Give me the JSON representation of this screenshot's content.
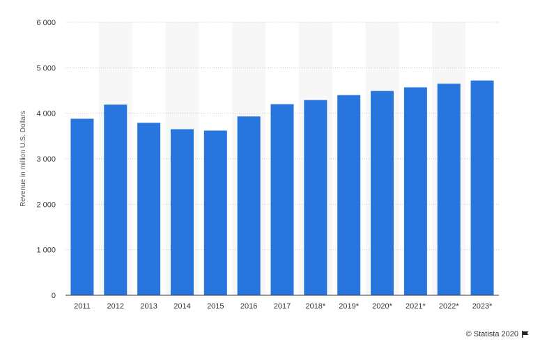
{
  "chart_data": {
    "type": "bar",
    "title": "",
    "xlabel": "",
    "ylabel": "Revenue in million U.S. Dollars",
    "categories": [
      "2011",
      "2012",
      "2013",
      "2014",
      "2015",
      "2016",
      "2017",
      "2018*",
      "2019*",
      "2020*",
      "2021*",
      "2022*",
      "2023*"
    ],
    "values": [
      3880,
      4190,
      3790,
      3650,
      3620,
      3930,
      4200,
      4290,
      4400,
      4490,
      4570,
      4650,
      4720
    ],
    "ylim": [
      0,
      6000
    ],
    "yticks": [
      0,
      1000,
      2000,
      3000,
      4000,
      5000,
      6000
    ],
    "ytick_labels": [
      "0",
      "1 000",
      "2 000",
      "3 000",
      "4 000",
      "5 000",
      "6 000"
    ],
    "grid": true,
    "bar_color": "#2876dd",
    "band_color": "#f7f7f7"
  },
  "credit": {
    "text": "© Statista 2020",
    "icon": "flag-icon"
  }
}
